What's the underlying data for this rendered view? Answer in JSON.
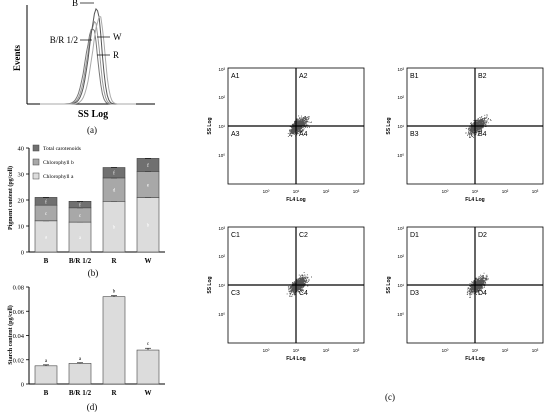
{
  "chart_data": [
    {
      "panel": "(a)",
      "type": "line",
      "xlabel": "SS Log",
      "ylabel": "Events",
      "curve_labels": [
        "B",
        "B/R 1/2",
        "W",
        "R"
      ]
    },
    {
      "panel": "(b)",
      "type": "bar",
      "stacked": true,
      "ylabel": "Pigment content (pg/cell)",
      "ylim": [
        0,
        40
      ],
      "yticks": [
        "0",
        "10",
        "20",
        "30",
        "40"
      ],
      "categories": [
        "B",
        "B/R 1/2",
        "R",
        "W"
      ],
      "legend": [
        "Total carotenoids",
        "Chlorophyll b",
        "Chlorophyll a"
      ],
      "series": [
        {
          "name": "Chlorophyll a",
          "values": [
            12,
            11.5,
            19.5,
            21
          ],
          "letters": [
            "a",
            "a",
            "b",
            "b"
          ],
          "color": "#dcdcdc"
        },
        {
          "name": "Chlorophyll b",
          "values": [
            6,
            5.5,
            9,
            10
          ],
          "letters": [
            "c",
            "c",
            "d",
            "e"
          ],
          "color": "#a8a8a8"
        },
        {
          "name": "Total carotenoids",
          "values": [
            3,
            2.5,
            4,
            5
          ],
          "letters": [
            "f",
            "f",
            "f",
            "f"
          ],
          "color": "#707070"
        }
      ]
    },
    {
      "panel": "(d)",
      "type": "bar",
      "ylabel": "Starch content (pg/cell)",
      "ylim": [
        0,
        0.08
      ],
      "yticks": [
        "0",
        "0.02",
        "0.04",
        "0.06",
        "0.08"
      ],
      "categories": [
        "B",
        "B/R 1/2",
        "R",
        "W"
      ],
      "values": [
        0.015,
        0.017,
        0.072,
        0.028
      ],
      "errors": [
        0.0008,
        0.0005,
        0.0008,
        0.0015
      ],
      "letters": [
        "a",
        "a",
        "b",
        "c"
      ]
    },
    {
      "panel": "(c)",
      "type": "scatter",
      "xlabel": "FL4 Log",
      "ylabel": "SS Log",
      "xticks": [
        "10⁰",
        "10¹",
        "10²",
        "10³"
      ],
      "yticks": [
        "10⁰",
        "10¹",
        "10²",
        "10³"
      ],
      "plots": [
        {
          "quadrants": [
            "A1",
            "A2",
            "A3",
            "A4"
          ]
        },
        {
          "quadrants": [
            "B1",
            "B2",
            "B3",
            "B4"
          ]
        },
        {
          "quadrants": [
            "C1",
            "C2",
            "C3",
            "C4"
          ]
        },
        {
          "quadrants": [
            "D1",
            "D2",
            "D3",
            "D4"
          ]
        }
      ]
    }
  ]
}
